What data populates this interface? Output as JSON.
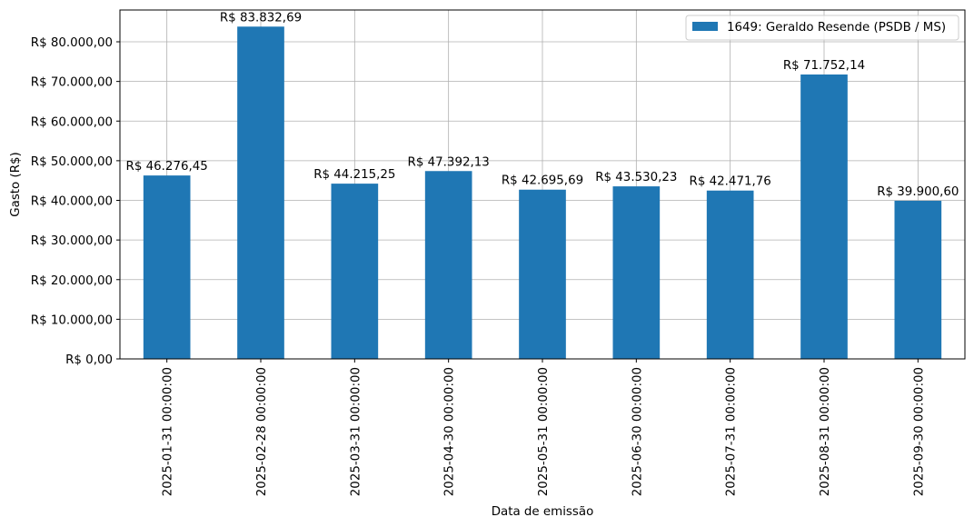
{
  "chart_data": {
    "type": "bar",
    "title": "",
    "xlabel": "Data de emissão",
    "ylabel": "Gasto (R$)",
    "categories": [
      "2025-01-31 00:00:00",
      "2025-02-28 00:00:00",
      "2025-03-31 00:00:00",
      "2025-04-30 00:00:00",
      "2025-05-31 00:00:00",
      "2025-06-30 00:00:00",
      "2025-07-31 00:00:00",
      "2025-08-31 00:00:00",
      "2025-09-30 00:00:00"
    ],
    "series": [
      {
        "name": "1649: Geraldo Resende (PSDB / MS)",
        "color": "#1f77b4",
        "values": [
          46276.45,
          83832.69,
          44215.25,
          47392.13,
          42695.69,
          43530.23,
          42471.76,
          71752.14,
          39900.6
        ],
        "labels": [
          "R$ 46.276,45",
          "R$ 83.832,69",
          "R$ 44.215,25",
          "R$ 47.392,13",
          "R$ 42.695,69",
          "R$ 43.530,23",
          "R$ 42.471,76",
          "R$ 71.752,14",
          "R$ 39.900,60"
        ]
      }
    ],
    "ylim": [
      0,
      88024
    ],
    "yticks": [
      0,
      10000,
      20000,
      30000,
      40000,
      50000,
      60000,
      70000,
      80000
    ],
    "ytick_labels": [
      "R$ 0,00",
      "R$ 10.000,00",
      "R$ 20.000,00",
      "R$ 30.000,00",
      "R$ 40.000,00",
      "R$ 50.000,00",
      "R$ 60.000,00",
      "R$ 70.000,00",
      "R$ 80.000,00"
    ],
    "grid": true,
    "legend": "top-right"
  }
}
